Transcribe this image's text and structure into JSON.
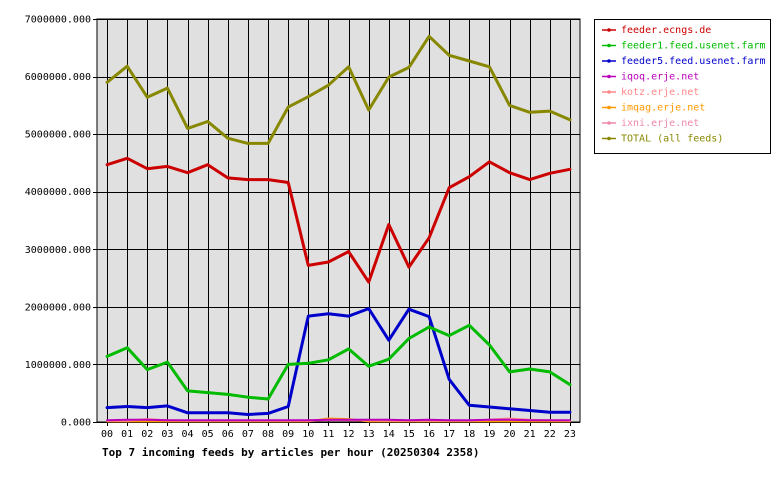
{
  "chart_data": {
    "type": "line",
    "title": "Top 7 incoming feeds by articles per hour (20250304 2358)",
    "ylim": [
      0,
      7000000
    ],
    "y_ticks": [
      "0.000",
      "1000000.000",
      "2000000.000",
      "3000000.000",
      "4000000.000",
      "5000000.000",
      "6000000.000",
      "7000000.000"
    ],
    "y_tick_values": [
      0,
      1000000,
      2000000,
      3000000,
      4000000,
      5000000,
      6000000,
      7000000
    ],
    "categories": [
      "00",
      "01",
      "02",
      "03",
      "04",
      "05",
      "06",
      "07",
      "08",
      "09",
      "10",
      "11",
      "12",
      "13",
      "14",
      "15",
      "16",
      "17",
      "18",
      "19",
      "20",
      "21",
      "22",
      "23"
    ],
    "grid": true,
    "legend_position": "right",
    "series": [
      {
        "name": "feeder.ecngs.de",
        "color": "#cc0000",
        "width": 3,
        "values": [
          4470000,
          4580000,
          4400000,
          4440000,
          4330000,
          4470000,
          4240000,
          4210000,
          4210000,
          4160000,
          2720000,
          2780000,
          2960000,
          2430000,
          3430000,
          2690000,
          3200000,
          4070000,
          4260000,
          4520000,
          4330000,
          4210000,
          4320000,
          4390000
        ]
      },
      {
        "name": "feeder1.feed.usenet.farm",
        "color": "#00bb00",
        "width": 3,
        "values": [
          1140000,
          1290000,
          910000,
          1040000,
          540000,
          510000,
          480000,
          430000,
          400000,
          1000000,
          1020000,
          1080000,
          1270000,
          970000,
          1090000,
          1450000,
          1650000,
          1500000,
          1680000,
          1340000,
          870000,
          920000,
          870000,
          650000
        ]
      },
      {
        "name": "feeder5.feed.usenet.farm",
        "color": "#0000cc",
        "width": 3,
        "values": [
          250000,
          270000,
          250000,
          280000,
          160000,
          160000,
          160000,
          130000,
          150000,
          270000,
          1840000,
          1880000,
          1840000,
          1970000,
          1420000,
          1960000,
          1830000,
          740000,
          290000,
          260000,
          230000,
          200000,
          170000,
          170000
        ]
      },
      {
        "name": "iqoq.erje.net",
        "color": "#bb00bb",
        "width": 2,
        "values": [
          30000,
          40000,
          40000,
          30000,
          30000,
          30000,
          30000,
          30000,
          30000,
          30000,
          30000,
          40000,
          40000,
          40000,
          40000,
          30000,
          40000,
          30000,
          30000,
          40000,
          40000,
          30000,
          30000,
          30000
        ]
      },
      {
        "name": "kotz.erje.net",
        "color": "#ff8888",
        "width": 2,
        "values": [
          20000,
          20000,
          50000,
          30000,
          20000,
          20000,
          20000,
          20000,
          20000,
          20000,
          20000,
          40000,
          30000,
          30000,
          20000,
          20000,
          20000,
          20000,
          20000,
          40000,
          60000,
          40000,
          30000,
          20000
        ]
      },
      {
        "name": "imqag.erje.net",
        "color": "#ff9900",
        "width": 2,
        "values": [
          10000,
          10000,
          10000,
          10000,
          10000,
          10000,
          10000,
          10000,
          10000,
          10000,
          10000,
          60000,
          50000,
          10000,
          10000,
          10000,
          10000,
          10000,
          10000,
          10000,
          10000,
          10000,
          10000,
          10000
        ]
      },
      {
        "name": "ixni.erje.net",
        "color": "#ee88aa",
        "width": 2,
        "values": [
          20000,
          20000,
          30000,
          20000,
          20000,
          20000,
          20000,
          20000,
          20000,
          20000,
          20000,
          30000,
          30000,
          20000,
          20000,
          20000,
          30000,
          20000,
          20000,
          30000,
          30000,
          20000,
          20000,
          20000
        ]
      },
      {
        "name": "TOTAL (all feeds)",
        "color": "#888800",
        "width": 3,
        "values": [
          5900000,
          6180000,
          5640000,
          5800000,
          5100000,
          5220000,
          4930000,
          4840000,
          4840000,
          5470000,
          5650000,
          5850000,
          6170000,
          5420000,
          5990000,
          6160000,
          6700000,
          6370000,
          6270000,
          6170000,
          5500000,
          5380000,
          5400000,
          5250000
        ]
      }
    ]
  }
}
